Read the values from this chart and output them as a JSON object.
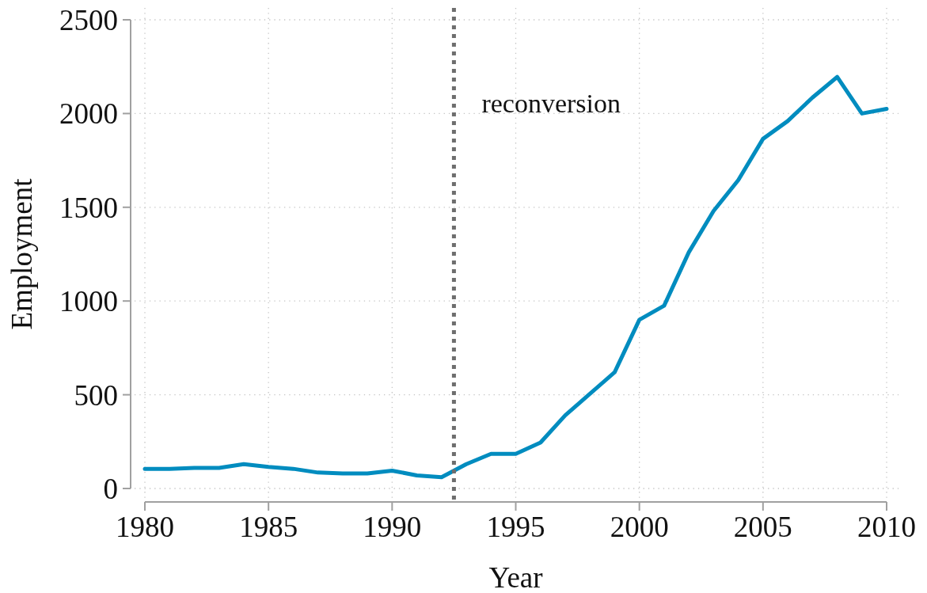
{
  "chart_data": {
    "type": "line",
    "xlabel": "Year",
    "ylabel": "Employment",
    "x": [
      1980,
      1981,
      1982,
      1983,
      1984,
      1985,
      1986,
      1987,
      1988,
      1989,
      1990,
      1991,
      1992,
      1993,
      1994,
      1995,
      1996,
      1997,
      1998,
      1999,
      2000,
      2001,
      2002,
      2003,
      2004,
      2005,
      2006,
      2007,
      2008,
      2009,
      2010
    ],
    "series": [
      {
        "color": "#008cbf",
        "values": [
          105,
          105,
          110,
          110,
          130,
          115,
          105,
          85,
          80,
          80,
          95,
          70,
          60,
          130,
          185,
          185,
          245,
          390,
          505,
          620,
          900,
          975,
          1260,
          1480,
          1645,
          1865,
          1960,
          2085,
          2195,
          2000,
          2025
        ]
      }
    ],
    "xlim": [
      1980,
      2010
    ],
    "xticks": [
      1980,
      1985,
      1990,
      1995,
      2000,
      2005,
      2010
    ],
    "ylim": [
      0,
      2500
    ],
    "yticks": [
      0,
      500,
      1000,
      1500,
      2000,
      2500
    ],
    "grid": true,
    "line_style": "solid",
    "ref_lines": [
      {
        "axis": "x",
        "value": 1992.5,
        "label": "reconversion",
        "color": "#6e6e6e",
        "line_style": "dotted"
      }
    ]
  }
}
